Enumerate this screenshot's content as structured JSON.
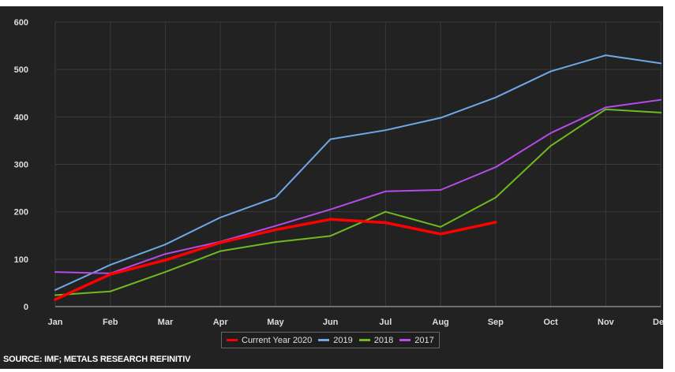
{
  "chart_data": {
    "type": "line",
    "categories": [
      "Jan",
      "Feb",
      "Mar",
      "Apr",
      "May",
      "Jun",
      "Jul",
      "Aug",
      "Sep",
      "Oct",
      "Nov",
      "Dec"
    ],
    "ylim": [
      0,
      600
    ],
    "yticks": [
      0,
      100,
      200,
      300,
      400,
      500,
      600
    ],
    "grid": true,
    "legend_position": "bottom-center",
    "series": [
      {
        "name": "Current Year 2020",
        "color": "#ff0000",
        "width": 3.5,
        "values": [
          15,
          68,
          98,
          135,
          162,
          184,
          177,
          153,
          178,
          null,
          null,
          null
        ]
      },
      {
        "name": "2019",
        "color": "#6fa8e8",
        "width": 2,
        "values": [
          35,
          88,
          131,
          188,
          230,
          353,
          372,
          398,
          441,
          496,
          530,
          513
        ]
      },
      {
        "name": "2018",
        "color": "#6fba1f",
        "width": 2,
        "values": [
          24,
          32,
          73,
          117,
          136,
          149,
          200,
          168,
          230,
          339,
          416,
          409
        ]
      },
      {
        "name": "2017",
        "color": "#b74ae8",
        "width": 2,
        "values": [
          73,
          70,
          111,
          137,
          170,
          205,
          243,
          246,
          294,
          366,
          420,
          436
        ]
      }
    ]
  },
  "footer": {
    "source": "SOURCE: IMF; METALS RESEARCH REFINITIV"
  }
}
